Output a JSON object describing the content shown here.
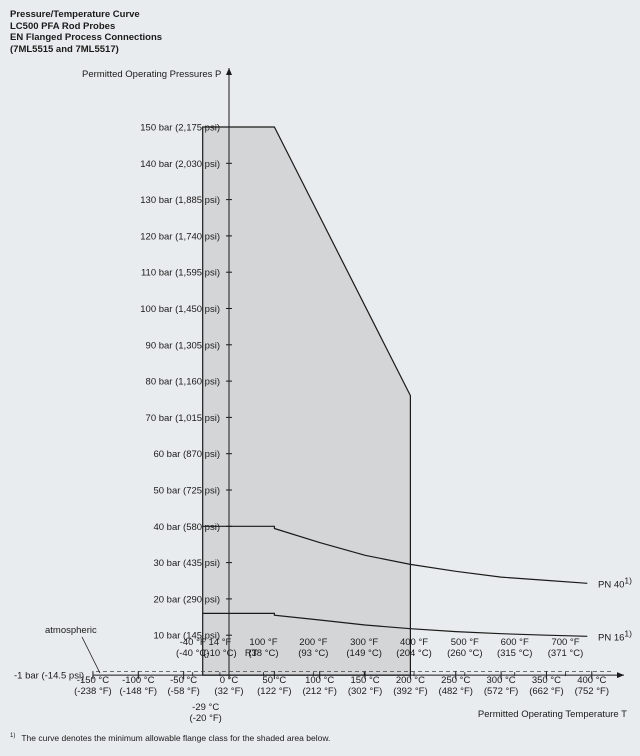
{
  "title_lines": [
    "Pressure/Temperature Curve",
    "LC500 PFA Rod Probes",
    "EN Flanged Process Connections",
    "(7ML5515 and 7ML5517)"
  ],
  "footnote": {
    "marker": "1)",
    "text": "The curve denotes the minimum allowable flange class for the shaded area below."
  },
  "chart_data": {
    "type": "area",
    "ylabel": "Permitted Operating Pressures P",
    "xlabel": "Permitted Operating Temperature T",
    "xlim": [
      -155,
      420
    ],
    "ylim": [
      -1,
      155
    ],
    "y_ticks": [
      {
        "value": 150,
        "label": "150 bar (2,175 psi)"
      },
      {
        "value": 140,
        "label": "140 bar (2,030 psi)"
      },
      {
        "value": 130,
        "label": "130 bar (1,885 psi)"
      },
      {
        "value": 120,
        "label": "120 bar (1,740 psi)"
      },
      {
        "value": 110,
        "label": "110 bar (1,595 psi)"
      },
      {
        "value": 100,
        "label": "100 bar (1,450 psi)"
      },
      {
        "value": 90,
        "label": "90 bar (1,305 psi)"
      },
      {
        "value": 80,
        "label": "80 bar (1,160 psi)"
      },
      {
        "value": 70,
        "label": "70 bar (1,015 psi)"
      },
      {
        "value": 60,
        "label": "60 bar (870 psi)"
      },
      {
        "value": 50,
        "label": "50 bar (725 psi)"
      },
      {
        "value": 40,
        "label": "40 bar (580 psi)"
      },
      {
        "value": 30,
        "label": "30 bar (435 psi)"
      },
      {
        "value": 20,
        "label": "20 bar (290 psi)"
      },
      {
        "value": 10,
        "label": "10 bar (145 psi)"
      }
    ],
    "atmosphere": {
      "value": -1,
      "label": "-1 bar (-14.5 psi)",
      "annotation": "atmospheric"
    },
    "x_ticks_below": [
      {
        "value": -150,
        "lines": [
          "-150 °C",
          "(-238 °F)"
        ]
      },
      {
        "value": -100,
        "lines": [
          "-100 °C",
          "(-148 °F)"
        ]
      },
      {
        "value": -50,
        "lines": [
          "-50 °C",
          "(-58 °F)"
        ]
      },
      {
        "value": 0,
        "lines": [
          "0 °C",
          "(32 °F)"
        ]
      },
      {
        "value": 50,
        "lines": [
          "50 °C",
          "(122 °F)"
        ]
      },
      {
        "value": 100,
        "lines": [
          "100 °C",
          "(212 °F)"
        ]
      },
      {
        "value": 150,
        "lines": [
          "150 °C",
          "(302 °F)"
        ]
      },
      {
        "value": 200,
        "lines": [
          "200 °C",
          "(392 °F)"
        ]
      },
      {
        "value": 250,
        "lines": [
          "250 °C",
          "(482 °F)"
        ]
      },
      {
        "value": 300,
        "lines": [
          "300 °C",
          "(572 °F)"
        ]
      },
      {
        "value": 350,
        "lines": [
          "350 °C",
          "(662 °F)"
        ]
      },
      {
        "value": 400,
        "lines": [
          "400 °C",
          "(752 °F)"
        ]
      }
    ],
    "x_ticks_below_extra": [
      {
        "value": -29,
        "lines": [
          "-29 °C",
          "(-20 °F)"
        ]
      }
    ],
    "x_ticks_above": [
      {
        "value": -40,
        "lines": [
          "-40 °F",
          "(-40 °C)"
        ]
      },
      {
        "value": -10,
        "lines": [
          "14 °F",
          "(-10 °C)"
        ]
      },
      {
        "value": 38,
        "lines": [
          "100 °F",
          "(38 °C)"
        ]
      },
      {
        "value": 93,
        "lines": [
          "200 °F",
          "(93 °C)"
        ]
      },
      {
        "value": 149,
        "lines": [
          "300 °F",
          "(149 °C)"
        ]
      },
      {
        "value": 204,
        "lines": [
          "400 °F",
          "(204 °C)"
        ]
      },
      {
        "value": 260,
        "lines": [
          "500 °F",
          "(260 °C)"
        ]
      },
      {
        "value": 315,
        "lines": [
          "600 °F",
          "(315 °C)"
        ]
      },
      {
        "value": 371,
        "lines": [
          "700 °F",
          "(371 °C)"
        ]
      }
    ],
    "rt": {
      "value": 20,
      "label": "RT"
    },
    "shaded_region": {
      "fill": "#d3d5d7",
      "points": [
        [
          -29,
          -1
        ],
        [
          -29,
          150
        ],
        [
          50,
          150
        ],
        [
          200,
          76
        ],
        [
          200,
          -1
        ]
      ]
    },
    "series": [
      {
        "name": "PN 40",
        "name_sup": "1)",
        "points": [
          [
            -29,
            40
          ],
          [
            50,
            40
          ],
          [
            50,
            39.4
          ],
          [
            100,
            35.5
          ],
          [
            150,
            32
          ],
          [
            200,
            29.5
          ],
          [
            250,
            27.6
          ],
          [
            300,
            26
          ],
          [
            350,
            25.1
          ],
          [
            395,
            24.3
          ]
        ]
      },
      {
        "name": "PN 16",
        "name_sup": "1)",
        "points": [
          [
            -29,
            16
          ],
          [
            50,
            16
          ],
          [
            50,
            15.5
          ],
          [
            100,
            14.2
          ],
          [
            150,
            12.8
          ],
          [
            200,
            11.8
          ],
          [
            250,
            11
          ],
          [
            300,
            10.4
          ],
          [
            350,
            10
          ],
          [
            395,
            9.7
          ]
        ]
      }
    ],
    "grid": false,
    "colors": {
      "line": "#1a1a1a",
      "shade": "#d3d5d7",
      "background": "#e9ecee"
    }
  }
}
